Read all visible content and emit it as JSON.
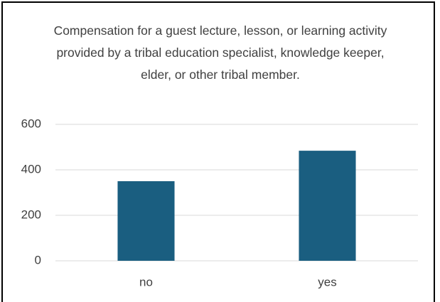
{
  "chart_data": {
    "type": "bar",
    "title": "Compensation for a guest lecture, lesson, or learning activity provided by a tribal education specialist, knowledge keeper, elder, or other tribal member.",
    "categories": [
      "no",
      "yes"
    ],
    "values": [
      350,
      484
    ],
    "color": "#1a5e80",
    "ylim": [
      0,
      600
    ],
    "yticks": [
      0,
      200,
      400,
      600
    ],
    "grid": true
  }
}
